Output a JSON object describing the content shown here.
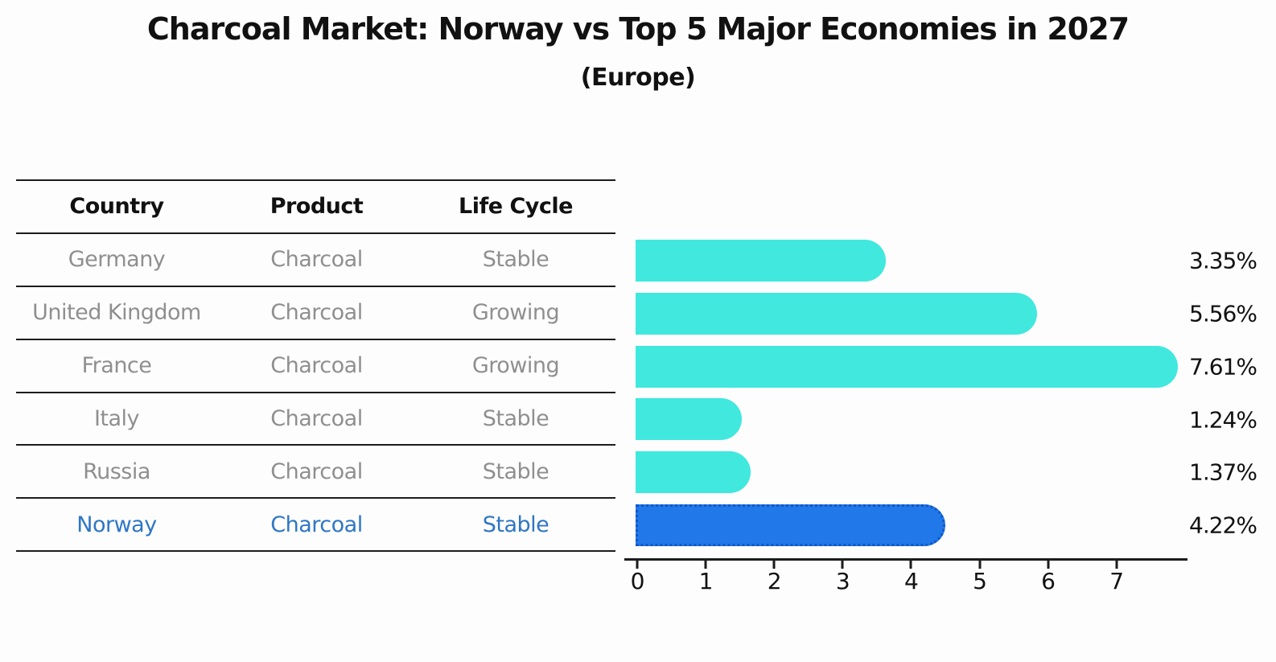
{
  "title": "Charcoal Market: Norway vs Top 5 Major Economies in 2027",
  "subtitle": "(Europe)",
  "table": {
    "headers": [
      "Country",
      "Product",
      "Life Cycle"
    ],
    "rows": [
      {
        "country": "Germany",
        "product": "Charcoal",
        "life_cycle": "Stable",
        "highlighted": false
      },
      {
        "country": "United Kingdom",
        "product": "Charcoal",
        "life_cycle": "Growing",
        "highlighted": false
      },
      {
        "country": "France",
        "product": "Charcoal",
        "life_cycle": "Growing",
        "highlighted": false
      },
      {
        "country": "Italy",
        "product": "Charcoal",
        "life_cycle": "Stable",
        "highlighted": false
      },
      {
        "country": "Russia",
        "product": "Charcoal",
        "life_cycle": "Stable",
        "highlighted": false
      },
      {
        "country": "Norway",
        "product": "Charcoal",
        "life_cycle": "Stable",
        "highlighted": true
      }
    ]
  },
  "chart_data": {
    "type": "bar",
    "orientation": "horizontal",
    "title": "Charcoal Market: Norway vs Top 5 Major Economies in 2027 (Europe)",
    "categories": [
      "Germany",
      "United Kingdom",
      "France",
      "Italy",
      "Russia",
      "Norway"
    ],
    "values": [
      3.35,
      5.56,
      7.61,
      1.24,
      1.37,
      4.22
    ],
    "value_labels": [
      "3.35%",
      "5.56%",
      "7.61%",
      "1.24%",
      "1.37%",
      "4.22%"
    ],
    "x_ticks": [
      "0",
      "1",
      "2",
      "3",
      "4",
      "5",
      "6",
      "7"
    ],
    "xlim": [
      0,
      8.05
    ],
    "xlabel": "",
    "ylabel": "",
    "grid": false,
    "legend": false,
    "highlight_index": 5
  },
  "colors": {
    "bar": "#40e8de",
    "highlight_bar": "#2178e8",
    "highlight_border": "#1256c8",
    "highlight_text": "#2f76c5",
    "muted_text": "#8f8f8f",
    "heading_text": "#111111",
    "axis": "#1c1c1c",
    "background": "#fdfdfd"
  }
}
